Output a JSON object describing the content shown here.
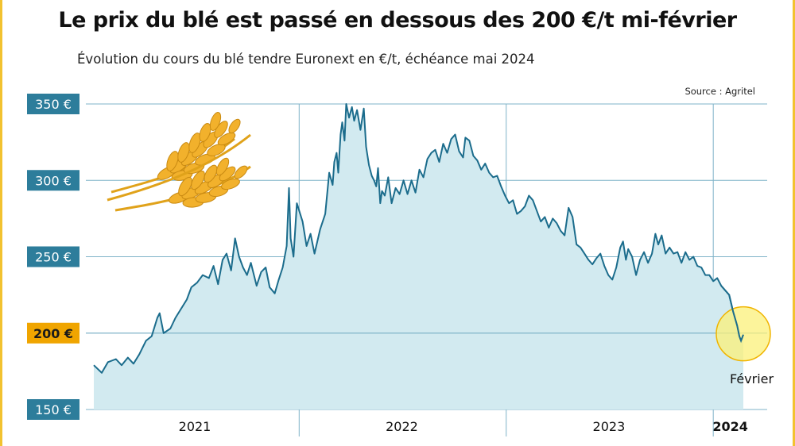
{
  "title": "Le prix du blé est passé en dessous des 200 €/t mi-février",
  "subtitle": "Évolution du cours du blé tendre Euronext en €/t, échéance mai 2024",
  "source": "Source :  Agritel",
  "annotation": "Février",
  "colors": {
    "line": "#1b6c8c",
    "area": "#d2eaf0",
    "grid": "#7fb3c8",
    "tick_box": "#2d7d9b",
    "highlight_box": "#f0a500",
    "circle_fill": "#fbf07a",
    "circle_stroke": "#f0b400",
    "frame": "#f2c230"
  },
  "icon": "wheat-ears-icon",
  "chart_data": {
    "type": "area",
    "ylim": [
      150,
      350
    ],
    "yticks": [
      {
        "value": 350,
        "label": "350 €"
      },
      {
        "value": 300,
        "label": "300 €"
      },
      {
        "value": 250,
        "label": "250 €"
      },
      {
        "value": 200,
        "label": "200 €",
        "highlight": true
      },
      {
        "value": 150,
        "label": "150 €"
      }
    ],
    "xlim": [
      "2021-01-04",
      "2024-02-23"
    ],
    "xticks": [
      {
        "date": "2021-07-01",
        "label": "2021",
        "bold": false
      },
      {
        "date": "2022-07-01",
        "label": "2022",
        "bold": false
      },
      {
        "date": "2023-07-01",
        "label": "2023",
        "bold": false
      },
      {
        "date": "2024-01-31",
        "label": "2024",
        "bold": true
      }
    ],
    "xgrid": [
      "2022-01-01",
      "2023-01-01",
      "2024-01-01"
    ],
    "series": [
      {
        "values": [
          [
            "2021-01-04",
            179
          ],
          [
            "2021-01-18",
            174
          ],
          [
            "2021-01-29",
            181
          ],
          [
            "2021-02-12",
            183
          ],
          [
            "2021-02-22",
            179
          ],
          [
            "2021-03-05",
            184
          ],
          [
            "2021-03-15",
            180
          ],
          [
            "2021-03-25",
            186
          ],
          [
            "2021-04-06",
            195
          ],
          [
            "2021-04-16",
            198
          ],
          [
            "2021-04-26",
            210
          ],
          [
            "2021-04-30",
            213
          ],
          [
            "2021-05-07",
            200
          ],
          [
            "2021-05-19",
            203
          ],
          [
            "2021-05-28",
            210
          ],
          [
            "2021-06-07",
            216
          ],
          [
            "2021-06-17",
            222
          ],
          [
            "2021-06-25",
            230
          ],
          [
            "2021-07-05",
            233
          ],
          [
            "2021-07-15",
            238
          ],
          [
            "2021-07-26",
            236
          ],
          [
            "2021-08-03",
            244
          ],
          [
            "2021-08-11",
            232
          ],
          [
            "2021-08-19",
            248
          ],
          [
            "2021-08-26",
            252
          ],
          [
            "2021-09-03",
            241
          ],
          [
            "2021-09-10",
            262
          ],
          [
            "2021-09-17",
            250
          ],
          [
            "2021-09-24",
            243
          ],
          [
            "2021-10-01",
            238
          ],
          [
            "2021-10-08",
            246
          ],
          [
            "2021-10-18",
            231
          ],
          [
            "2021-10-26",
            240
          ],
          [
            "2021-11-03",
            243
          ],
          [
            "2021-11-10",
            230
          ],
          [
            "2021-11-19",
            226
          ],
          [
            "2021-11-26",
            235
          ],
          [
            "2021-12-03",
            243
          ],
          [
            "2021-12-10",
            257
          ],
          [
            "2021-12-14",
            295
          ],
          [
            "2021-12-17",
            262
          ],
          [
            "2021-12-22",
            250
          ],
          [
            "2021-12-28",
            285
          ],
          [
            "2022-01-07",
            273
          ],
          [
            "2022-01-14",
            257
          ],
          [
            "2022-01-21",
            265
          ],
          [
            "2022-01-28",
            252
          ],
          [
            "2022-02-07",
            268
          ],
          [
            "2022-02-16",
            278
          ],
          [
            "2022-02-23",
            305
          ],
          [
            "2022-03-01",
            297
          ],
          [
            "2022-03-04",
            312
          ],
          [
            "2022-03-08",
            318
          ],
          [
            "2022-03-11",
            305
          ],
          [
            "2022-03-15",
            330
          ],
          [
            "2022-03-18",
            338
          ],
          [
            "2022-03-22",
            326
          ],
          [
            "2022-03-25",
            350
          ],
          [
            "2022-03-30",
            341
          ],
          [
            "2022-04-04",
            348
          ],
          [
            "2022-04-08",
            339
          ],
          [
            "2022-04-13",
            346
          ],
          [
            "2022-04-19",
            333
          ],
          [
            "2022-04-25",
            347
          ],
          [
            "2022-04-29",
            322
          ],
          [
            "2022-05-04",
            310
          ],
          [
            "2022-05-09",
            303
          ],
          [
            "2022-05-13",
            300
          ],
          [
            "2022-05-17",
            296
          ],
          [
            "2022-05-20",
            308
          ],
          [
            "2022-05-24",
            285
          ],
          [
            "2022-05-27",
            293
          ],
          [
            "2022-06-01",
            290
          ],
          [
            "2022-06-07",
            302
          ],
          [
            "2022-06-13",
            285
          ],
          [
            "2022-06-20",
            295
          ],
          [
            "2022-06-27",
            291
          ],
          [
            "2022-07-04",
            300
          ],
          [
            "2022-07-11",
            291
          ],
          [
            "2022-07-18",
            300
          ],
          [
            "2022-07-25",
            292
          ],
          [
            "2022-08-01",
            307
          ],
          [
            "2022-08-08",
            302
          ],
          [
            "2022-08-15",
            314
          ],
          [
            "2022-08-22",
            318
          ],
          [
            "2022-08-29",
            320
          ],
          [
            "2022-09-05",
            312
          ],
          [
            "2022-09-12",
            324
          ],
          [
            "2022-09-19",
            318
          ],
          [
            "2022-09-26",
            327
          ],
          [
            "2022-10-03",
            330
          ],
          [
            "2022-10-10",
            319
          ],
          [
            "2022-10-17",
            315
          ],
          [
            "2022-10-21",
            328
          ],
          [
            "2022-10-28",
            326
          ],
          [
            "2022-11-04",
            316
          ],
          [
            "2022-11-11",
            313
          ],
          [
            "2022-11-18",
            307
          ],
          [
            "2022-11-25",
            311
          ],
          [
            "2022-12-02",
            305
          ],
          [
            "2022-12-09",
            302
          ],
          [
            "2022-12-16",
            303
          ],
          [
            "2022-12-23",
            296
          ],
          [
            "2022-12-30",
            290
          ],
          [
            "2023-01-06",
            285
          ],
          [
            "2023-01-13",
            287
          ],
          [
            "2023-01-20",
            278
          ],
          [
            "2023-01-27",
            280
          ],
          [
            "2023-02-03",
            283
          ],
          [
            "2023-02-10",
            290
          ],
          [
            "2023-02-17",
            287
          ],
          [
            "2023-02-24",
            280
          ],
          [
            "2023-03-03",
            273
          ],
          [
            "2023-03-10",
            276
          ],
          [
            "2023-03-17",
            269
          ],
          [
            "2023-03-24",
            275
          ],
          [
            "2023-03-31",
            272
          ],
          [
            "2023-04-07",
            267
          ],
          [
            "2023-04-14",
            264
          ],
          [
            "2023-04-21",
            282
          ],
          [
            "2023-04-28",
            276
          ],
          [
            "2023-05-05",
            258
          ],
          [
            "2023-05-12",
            256
          ],
          [
            "2023-05-19",
            252
          ],
          [
            "2023-05-26",
            248
          ],
          [
            "2023-06-02",
            245
          ],
          [
            "2023-06-09",
            249
          ],
          [
            "2023-06-16",
            252
          ],
          [
            "2023-06-23",
            244
          ],
          [
            "2023-06-30",
            238
          ],
          [
            "2023-07-07",
            235
          ],
          [
            "2023-07-14",
            243
          ],
          [
            "2023-07-21",
            256
          ],
          [
            "2023-07-26",
            260
          ],
          [
            "2023-07-31",
            248
          ],
          [
            "2023-08-04",
            255
          ],
          [
            "2023-08-11",
            250
          ],
          [
            "2023-08-18",
            238
          ],
          [
            "2023-08-25",
            248
          ],
          [
            "2023-09-01",
            253
          ],
          [
            "2023-09-08",
            246
          ],
          [
            "2023-09-15",
            252
          ],
          [
            "2023-09-21",
            265
          ],
          [
            "2023-09-26",
            258
          ],
          [
            "2023-10-02",
            264
          ],
          [
            "2023-10-09",
            252
          ],
          [
            "2023-10-16",
            256
          ],
          [
            "2023-10-23",
            252
          ],
          [
            "2023-10-30",
            253
          ],
          [
            "2023-11-06",
            246
          ],
          [
            "2023-11-13",
            253
          ],
          [
            "2023-11-20",
            248
          ],
          [
            "2023-11-27",
            250
          ],
          [
            "2023-12-04",
            244
          ],
          [
            "2023-12-11",
            243
          ],
          [
            "2023-12-18",
            238
          ],
          [
            "2023-12-25",
            238
          ],
          [
            "2024-01-01",
            234
          ],
          [
            "2024-01-08",
            236
          ],
          [
            "2024-01-15",
            231
          ],
          [
            "2024-01-22",
            228
          ],
          [
            "2024-01-29",
            225
          ],
          [
            "2024-02-05",
            214
          ],
          [
            "2024-02-12",
            205
          ],
          [
            "2024-02-16",
            198
          ],
          [
            "2024-02-19",
            195
          ],
          [
            "2024-02-23",
            199
          ]
        ]
      }
    ]
  }
}
